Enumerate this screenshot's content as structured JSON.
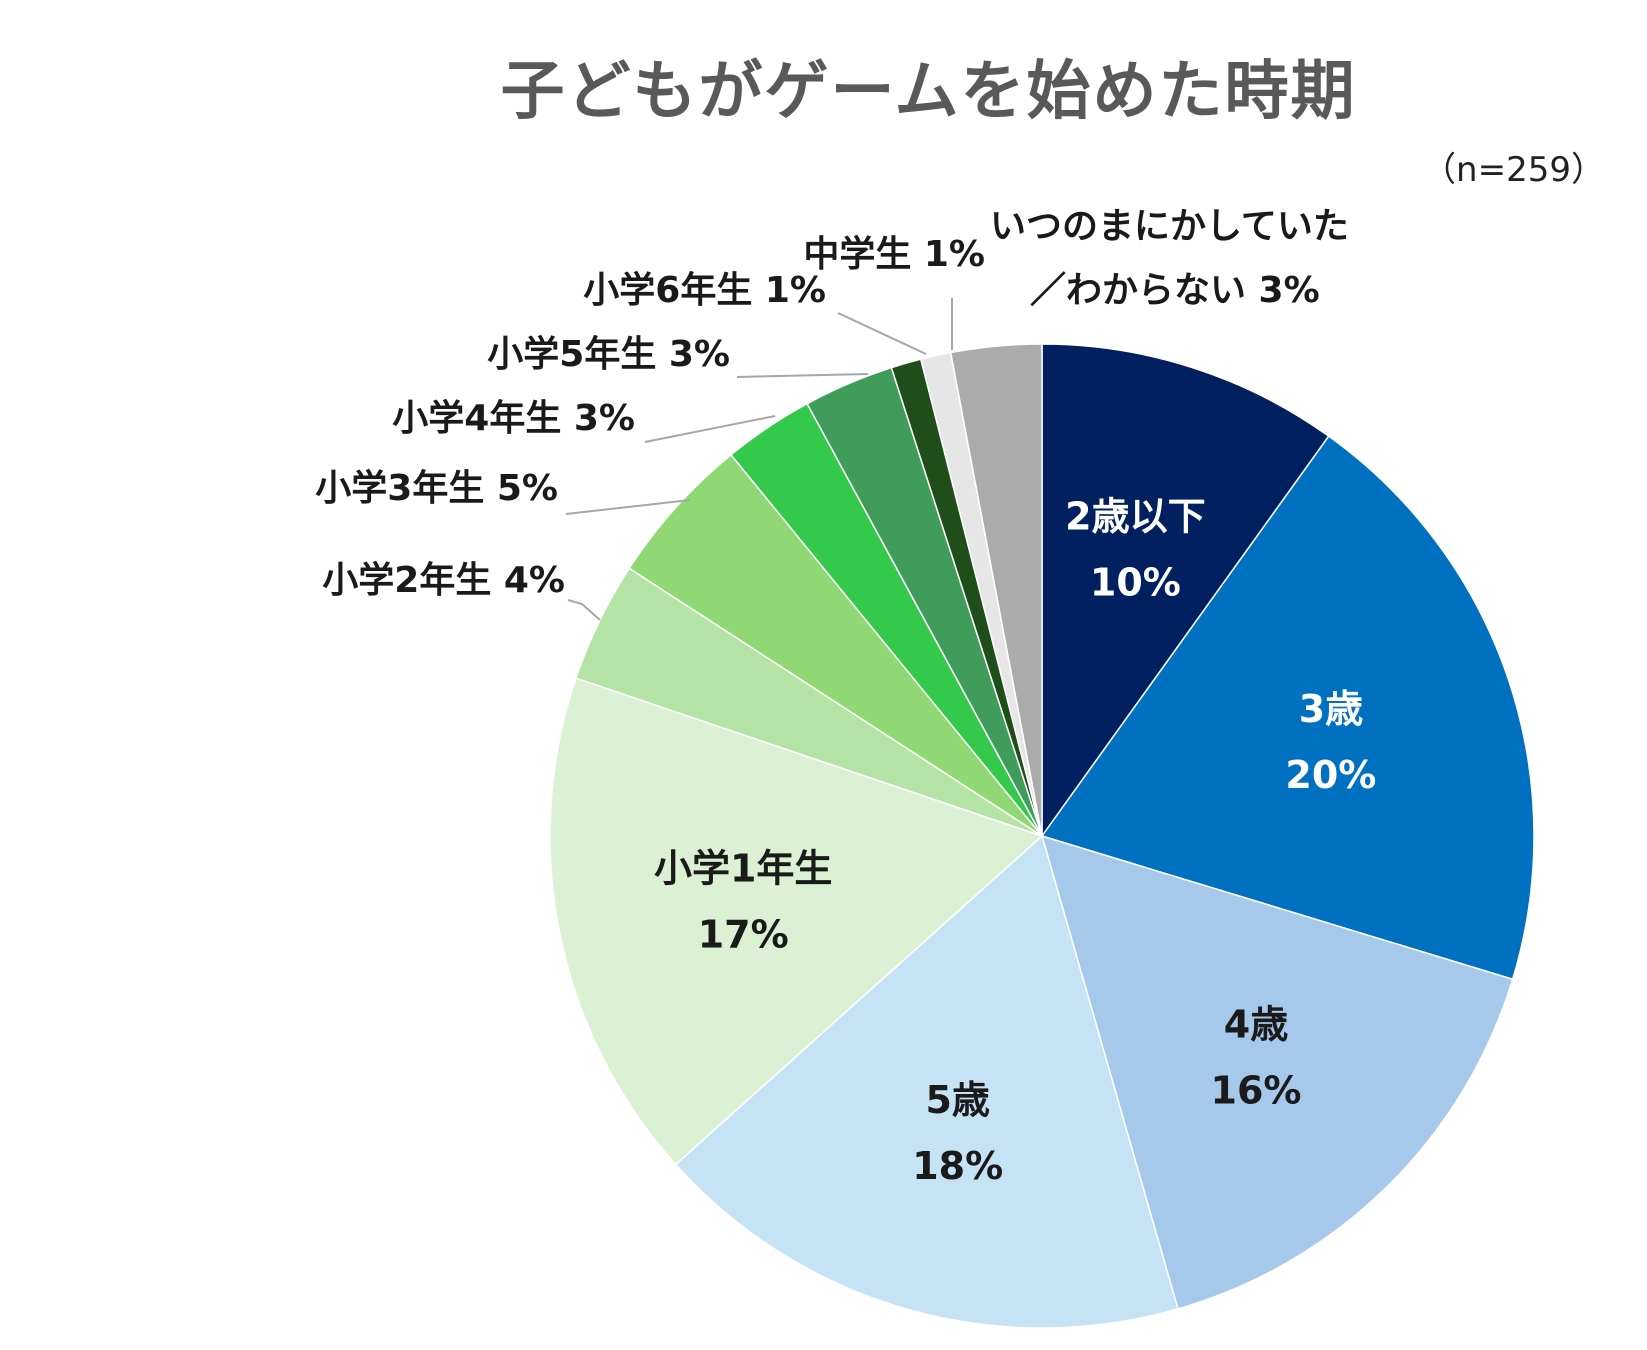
{
  "chart_data": {
    "type": "pie",
    "title": "子どもがゲームを始めた時期",
    "note": "（n=259）",
    "slices": [
      {
        "label": "2歳以下",
        "value": 10,
        "value_label": "10%",
        "color": "#002060",
        "text_color": "#ffffff",
        "inside": true
      },
      {
        "label": "3歳",
        "value": 20,
        "value_label": "20%",
        "color": "#0070C0",
        "text_color": "#ffffff",
        "inside": true
      },
      {
        "label": "4歳",
        "value": 16,
        "value_label": "16%",
        "color": "#A6C8EA",
        "text_color": "#1a1a1a",
        "inside": true
      },
      {
        "label": "5歳",
        "value": 18,
        "value_label": "18%",
        "color": "#C5E3F4",
        "text_color": "#1a1a1a",
        "inside": true
      },
      {
        "label": "小学1年生",
        "value": 17,
        "value_label": "17%",
        "color": "#DAF1D4",
        "text_color": "#1a1a1a",
        "inside": true
      },
      {
        "label": "小学2年生",
        "value": 4,
        "value_label": "4%",
        "color": "#B5E3A5",
        "text_color": "#1a1a1a",
        "inside": false
      },
      {
        "label": "小学3年生",
        "value": 5,
        "value_label": "5%",
        "color": "#8FD874",
        "text_color": "#1a1a1a",
        "inside": false
      },
      {
        "label": "小学4年生",
        "value": 3,
        "value_label": "3%",
        "color": "#34C94A",
        "text_color": "#1a1a1a",
        "inside": false
      },
      {
        "label": "小学5年生",
        "value": 3,
        "value_label": "3%",
        "color": "#3F9C5B",
        "text_color": "#1a1a1a",
        "inside": false
      },
      {
        "label": "小学6年生",
        "value": 1,
        "value_label": "1%",
        "color": "#1F4E1A",
        "text_color": "#1a1a1a",
        "inside": false
      },
      {
        "label": "中学生",
        "value": 1,
        "value_label": "1%",
        "color": "#E6E6E6",
        "text_color": "#1a1a1a",
        "inside": false
      },
      {
        "label": "いつのまにかしていた",
        "label2": "／わからない",
        "value": 3,
        "value_label": "3%",
        "color": "#ABABAB",
        "text_color": "#1a1a1a",
        "inside": false
      }
    ]
  }
}
